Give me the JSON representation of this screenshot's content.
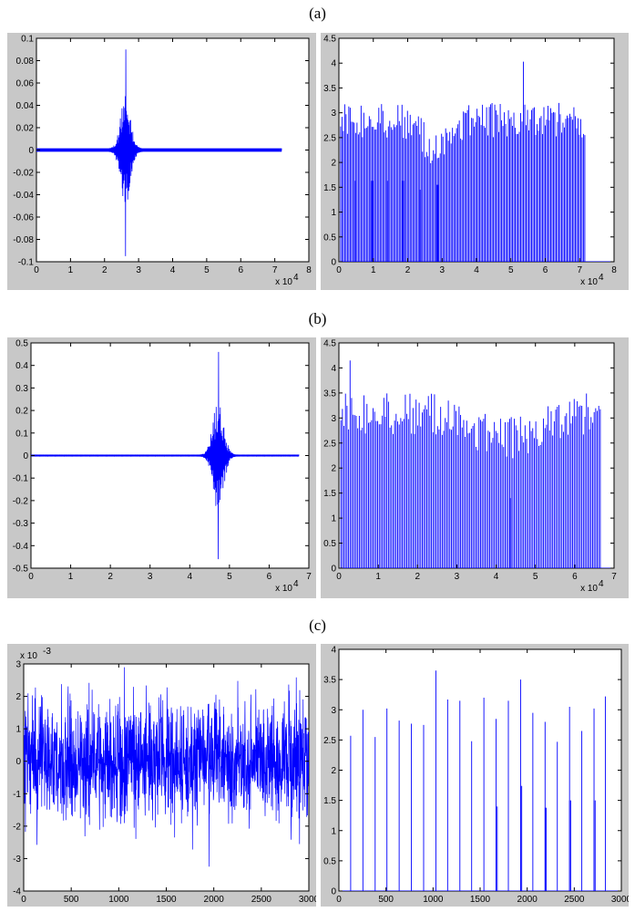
{
  "panel_labels": [
    "(a)",
    "(b)",
    "(c)"
  ],
  "colors": {
    "trace": "#0000ff",
    "frame": "#c8c8c8",
    "axes_bg": "#ffffff"
  },
  "chart_data": [
    {
      "id": "a-left",
      "type": "line",
      "title": "",
      "xlabel": "",
      "ylabel": "",
      "xlim": [
        0,
        8
      ],
      "ylim": [
        -0.1,
        0.1
      ],
      "xticks": [
        "0",
        "1",
        "2",
        "3",
        "4",
        "5",
        "6",
        "7",
        "8"
      ],
      "yticks": [
        "-0.1",
        "-0.08",
        "-0.06",
        "-0.04",
        "-0.02",
        "0",
        "0.02",
        "0.04",
        "0.06",
        "0.08",
        "0.1"
      ],
      "x_multiplier": "x 10",
      "x_multiplier_exp": "4",
      "y_multiplier": "",
      "y_multiplier_exp": "",
      "signal": {
        "kind": "burst",
        "x_end": 7.2,
        "center": 2.62,
        "width": 0.3,
        "peak_max": 0.09,
        "peak_min": -0.095,
        "floor": 0.0015
      }
    },
    {
      "id": "a-right",
      "type": "bar",
      "title": "",
      "xlabel": "",
      "ylabel": "",
      "xlim": [
        0,
        8
      ],
      "ylim": [
        0,
        4.5
      ],
      "xticks": [
        "0",
        "1",
        "2",
        "3",
        "4",
        "5",
        "6",
        "7",
        "8"
      ],
      "yticks": [
        "0",
        "0.5",
        "1",
        "1.5",
        "2",
        "2.5",
        "3",
        "3.5",
        "4",
        "4.5"
      ],
      "x_multiplier": "x 10",
      "x_multiplier_exp": "4",
      "y_multiplier": "",
      "y_multiplier_exp": "",
      "stems": {
        "x_start": 0.05,
        "x_end": 7.15,
        "count": 180,
        "base": 2.85,
        "amp": 0.5,
        "dip_center": 2.8,
        "dip_depth": 0.6,
        "dip_width": 0.5,
        "max_value": 4.03,
        "max_x": 5.35
      },
      "low_stems": {
        "x": [
          0.45,
          0.95,
          1.4,
          1.85,
          2.35,
          2.85
        ],
        "values": [
          1.63,
          1.63,
          1.63,
          1.63,
          1.45,
          1.55
        ]
      }
    },
    {
      "id": "b-left",
      "type": "line",
      "title": "",
      "xlabel": "",
      "ylabel": "",
      "xlim": [
        0,
        7
      ],
      "ylim": [
        -0.5,
        0.5
      ],
      "xticks": [
        "0",
        "1",
        "2",
        "3",
        "4",
        "5",
        "6",
        "7"
      ],
      "yticks": [
        "-0.5",
        "-0.4",
        "-0.3",
        "-0.2",
        "-0.1",
        "0",
        "0.1",
        "0.2",
        "0.3",
        "0.4",
        "0.5"
      ],
      "x_multiplier": "x 10",
      "x_multiplier_exp": "4",
      "y_multiplier": "",
      "y_multiplier_exp": "",
      "signal": {
        "kind": "burst",
        "x_end": 6.75,
        "center": 4.72,
        "width": 0.28,
        "peak_max": 0.46,
        "peak_min": -0.46,
        "floor": 0.004
      }
    },
    {
      "id": "b-right",
      "type": "bar",
      "title": "",
      "xlabel": "",
      "ylabel": "",
      "xlim": [
        0,
        7
      ],
      "ylim": [
        0,
        4.5
      ],
      "xticks": [
        "0",
        "1",
        "2",
        "3",
        "4",
        "5",
        "6",
        "7"
      ],
      "yticks": [
        "0",
        "0.5",
        "1",
        "1.5",
        "2",
        "2.5",
        "3",
        "3.5",
        "4",
        "4.5"
      ],
      "x_multiplier": "x 10",
      "x_multiplier_exp": "4",
      "y_multiplier": "",
      "y_multiplier_exp": "",
      "stems": {
        "x_start": 0.05,
        "x_end": 6.65,
        "count": 170,
        "base": 3.1,
        "amp": 0.6,
        "dip_center": 4.3,
        "dip_depth": 0.5,
        "dip_width": 1.2,
        "max_value": 4.15,
        "max_x": 0.3
      },
      "low_stems": {
        "x": [
          4.35
        ],
        "values": [
          1.4
        ]
      }
    },
    {
      "id": "c-left",
      "type": "line",
      "title": "",
      "xlabel": "",
      "ylabel": "",
      "xlim": [
        0,
        3000
      ],
      "ylim": [
        -4,
        3
      ],
      "xticks": [
        "0",
        "500",
        "1000",
        "1500",
        "2000",
        "2500",
        "3000"
      ],
      "yticks": [
        "-4",
        "-3",
        "-2",
        "-1",
        "0",
        "1",
        "2",
        "3"
      ],
      "x_multiplier": "",
      "x_multiplier_exp": "",
      "y_multiplier": "x 10",
      "y_multiplier_exp": "-3",
      "signal": {
        "kind": "noise",
        "x_end": 3000,
        "peak_max": 2.9,
        "peak_min": -3.25,
        "sigma": 0.9
      }
    },
    {
      "id": "c-right",
      "type": "bar",
      "title": "",
      "xlabel": "",
      "ylabel": "",
      "xlim": [
        0,
        3000
      ],
      "ylim": [
        0,
        4
      ],
      "xticks": [
        "0",
        "500",
        "1000",
        "1500",
        "2000",
        "2500",
        "3000"
      ],
      "yticks": [
        "0",
        "0.5",
        "1",
        "1.5",
        "2",
        "2.5",
        "3",
        "3.5",
        "4"
      ],
      "x_multiplier": "",
      "x_multiplier_exp": "",
      "y_multiplier": "",
      "y_multiplier_exp": "",
      "explicit_stems": {
        "x": [
          125,
          255,
          385,
          510,
          640,
          770,
          900,
          1030,
          1155,
          1285,
          1410,
          1540,
          1670,
          1800,
          1930,
          2060,
          2190,
          2320,
          2450,
          2580,
          2710,
          2830
        ],
        "values": [
          2.57,
          3.0,
          2.55,
          3.02,
          2.82,
          2.77,
          2.75,
          3.65,
          3.17,
          3.15,
          2.48,
          3.2,
          2.85,
          3.15,
          3.5,
          2.95,
          2.8,
          2.47,
          3.05,
          2.65,
          3.02,
          3.22
        ]
      },
      "low_stems": {
        "x": [
          1670,
          1930,
          2190,
          2450,
          2710
        ],
        "values": [
          1.4,
          1.74,
          1.38,
          1.5,
          1.5
        ]
      }
    }
  ]
}
